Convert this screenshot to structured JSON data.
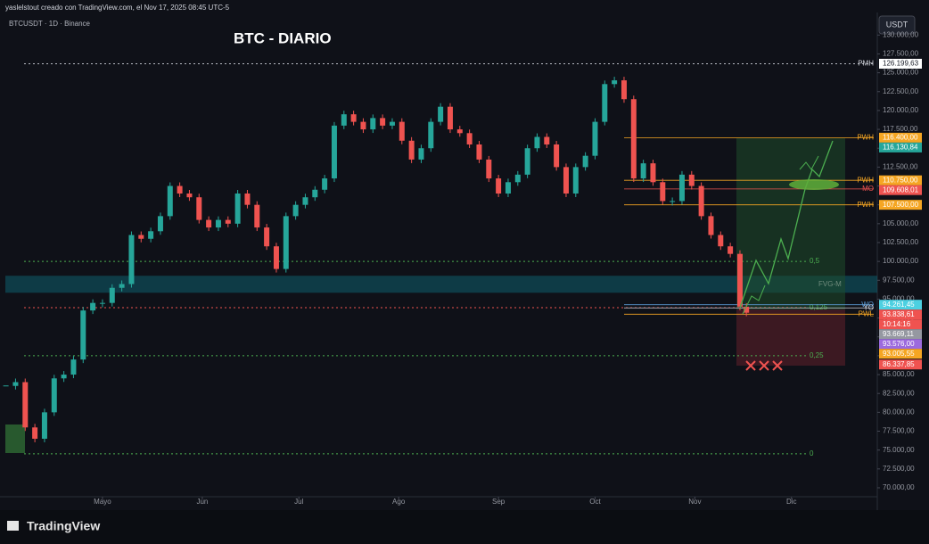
{
  "header": {
    "attribution": "yaslelstout creado con TradingView.com, el Nov 17, 2025 08:45 UTC-5",
    "symbol": "BTCUSDT · 1D · Binance",
    "title": "BTC - DIARIO",
    "currency": "USDT",
    "brand": "TradingView"
  },
  "chart_data": {
    "type": "candlestick",
    "x": [
      0,
      3,
      6,
      9,
      12,
      15,
      18,
      21,
      24,
      27,
      30,
      33,
      36,
      39,
      42,
      45,
      48,
      51,
      54,
      57,
      60,
      63,
      66,
      69,
      72,
      75,
      78,
      81,
      84,
      87,
      90,
      93,
      96,
      99,
      102,
      105,
      108,
      111,
      114,
      117,
      120,
      123,
      126,
      129,
      132,
      135,
      138,
      141,
      144,
      147,
      150,
      153,
      156,
      159,
      162,
      165,
      168,
      171,
      174,
      177,
      180,
      183,
      186,
      189,
      192,
      195,
      198,
      201,
      204,
      207,
      210,
      213,
      216,
      219,
      222,
      225,
      228,
      230
    ],
    "close": [
      83500,
      84000,
      78000,
      76500,
      80000,
      84500,
      85000,
      87000,
      93500,
      94500,
      94500,
      96500,
      97000,
      103500,
      103000,
      104000,
      106000,
      110000,
      109000,
      108500,
      105500,
      104500,
      105500,
      105000,
      109000,
      107500,
      104500,
      102000,
      99000,
      106000,
      107500,
      108500,
      109500,
      111000,
      118000,
      119500,
      118500,
      117500,
      119000,
      118000,
      118500,
      116000,
      113500,
      115000,
      118500,
      120500,
      117500,
      117000,
      115500,
      113500,
      111000,
      109000,
      110500,
      111500,
      115000,
      116500,
      115500,
      112500,
      109000,
      112500,
      114000,
      118500,
      123500,
      124000,
      121500,
      111000,
      113000,
      110500,
      108000,
      108000,
      111500,
      110000,
      106000,
      103500,
      102000,
      101000,
      94000,
      93200
    ],
    "up_color": "#26a69a",
    "down_color": "#ef5350",
    "xlim": [
      -1,
      270
    ],
    "xticks": [
      {
        "value": 30,
        "label": "Mayo"
      },
      {
        "value": 61,
        "label": "Jun"
      },
      {
        "value": 91,
        "label": "Jul"
      },
      {
        "value": 122,
        "label": "Ago"
      },
      {
        "value": 153,
        "label": "Sep"
      },
      {
        "value": 183,
        "label": "Oct"
      },
      {
        "value": 214,
        "label": "Nov"
      },
      {
        "value": 244,
        "label": "Dic"
      }
    ],
    "ylim": [
      69050,
      131100
    ],
    "yticks": [
      {
        "value": 70000,
        "label": "70.000,00"
      },
      {
        "value": 72500,
        "label": "72.500,00"
      },
      {
        "value": 75000,
        "label": "75.000,00"
      },
      {
        "value": 77500,
        "label": "77.500,00"
      },
      {
        "value": 80000,
        "label": "80.000,00"
      },
      {
        "value": 82500,
        "label": "82.500,00"
      },
      {
        "value": 85000,
        "label": "85.000,00"
      },
      {
        "value": 87500,
        "label": "87.500,00"
      },
      {
        "value": 90000,
        "label": "90.000,00"
      },
      {
        "value": 92500,
        "label": "92.500,00"
      },
      {
        "value": 95000,
        "label": "95.000,00"
      },
      {
        "value": 97500,
        "label": "97.500,00"
      },
      {
        "value": 100000,
        "label": "100.000,00"
      },
      {
        "value": 102500,
        "label": "102.500,00"
      },
      {
        "value": 105000,
        "label": "105.000,00"
      },
      {
        "value": 107500,
        "label": "107.500,00"
      },
      {
        "value": 110000,
        "label": "110.000,00"
      },
      {
        "value": 112500,
        "label": "112.500,00"
      },
      {
        "value": 115000,
        "label": "115.000,00"
      },
      {
        "value": 117500,
        "label": "117.500,00"
      },
      {
        "value": 120000,
        "label": "120.000,00"
      },
      {
        "value": 122500,
        "label": "122.500,00"
      },
      {
        "value": 125000,
        "label": "125.000,00"
      },
      {
        "value": 127500,
        "label": "127.500,00"
      },
      {
        "value": 130000,
        "label": "130.000,00"
      }
    ],
    "fib_levels": [
      {
        "value": 100000,
        "label": "0,5"
      },
      {
        "value": 93877,
        "label": "0,125"
      },
      {
        "value": 87500,
        "label": "0,25"
      },
      {
        "value": 74500,
        "label": "0"
      }
    ],
    "levels": [
      {
        "name": "PMH",
        "value": 126199.63,
        "color": "#d1d4dc"
      },
      {
        "name": "PWH",
        "value": 116400,
        "color": "#f5a623"
      },
      {
        "name": "PWH",
        "value": 110750,
        "color": "#f5a623"
      },
      {
        "name": "MO",
        "value": 109608.01,
        "color": "#ef5350"
      },
      {
        "name": "PWH",
        "value": 107500,
        "color": "#f5a623"
      },
      {
        "name": "WO",
        "value": 94261.45,
        "color": "#5b9bd5"
      },
      {
        "name": "YO",
        "value": 93838.61,
        "color": "#d1d4dc"
      },
      {
        "name": "PWL",
        "value": 93005.55,
        "color": "#f5a623"
      }
    ],
    "zone": {
      "name": "FVG-M",
      "range": [
        95850,
        98100
      ],
      "color": "#0e5f6e"
    },
    "price_tags": [
      {
        "value": 126199.63,
        "label": "126.199,63",
        "color": "#ffffff"
      },
      {
        "value": 116400,
        "label": "116.400,00",
        "color": "#f5a623"
      },
      {
        "value": 116130.84,
        "label": "116.130,84",
        "color": "#26a69a"
      },
      {
        "value": 110750,
        "label": "110.750,00",
        "color": "#f5a623"
      },
      {
        "value": 109608.01,
        "label": "109.608,01",
        "color": "#ef5350"
      },
      {
        "value": 107500,
        "label": "107.500,00",
        "color": "#f5a623"
      },
      {
        "value": 94261.45,
        "label": "94.261,45",
        "color": "#4dd0e1"
      },
      {
        "value": 93838.61,
        "label": "93.838,61",
        "color": "#ef5350"
      },
      {
        "label": "10:14:16",
        "color": "#ef5350"
      },
      {
        "value": 93669.11,
        "label": "93.669,11",
        "color": "#9598a1"
      },
      {
        "value": 93576,
        "label": "93.576,00",
        "color": "#9c6ade"
      },
      {
        "value": 93005.55,
        "label": "93.005,55",
        "color": "#f5a623"
      },
      {
        "value": 86337.85,
        "label": "86.337,85",
        "color": "#ef5350"
      }
    ]
  }
}
